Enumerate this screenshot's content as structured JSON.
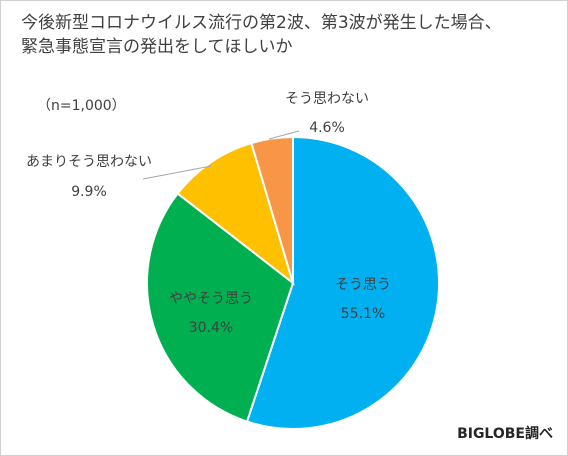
{
  "chart_data": {
    "type": "pie",
    "title_lines": [
      "今後新型コロナウイルス流行の第2波、第3波が発生した場合、",
      "緊急事態宣言の発出をしてほしいか"
    ],
    "sample_note": "（n=1,000）",
    "source": "BIGLOBE調べ",
    "slices": [
      {
        "label": "そう思う",
        "value": 55.1,
        "value_label": "55.1%",
        "color": "#00b0f0"
      },
      {
        "label": "ややそう思う",
        "value": 30.4,
        "value_label": "30.4%",
        "color": "#00b050"
      },
      {
        "label": "あまりそう思わない",
        "value": 9.9,
        "value_label": "9.9%",
        "color": "#ffc000"
      },
      {
        "label": "そう思わない",
        "value": 4.6,
        "value_label": "4.6%",
        "color": "#f79646"
      }
    ],
    "start_angle_deg": 0,
    "direction": "clockwise"
  }
}
